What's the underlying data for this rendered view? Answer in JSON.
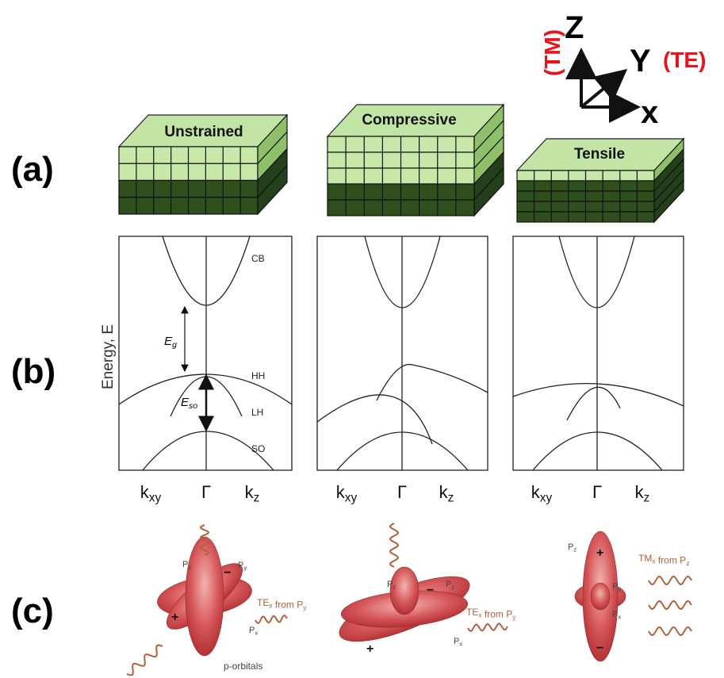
{
  "panel_labels": [
    "(a)",
    "(b)",
    "(c)"
  ],
  "axes": {
    "z": "Z",
    "y": "Y",
    "x": "x",
    "tm": "(TM)",
    "te": "(TE)"
  },
  "strain_blocks": [
    "Unstrained",
    "Compressive",
    "Tensile"
  ],
  "band_diagrams": {
    "y_axis_label": "Energy, E",
    "band_labels": [
      "CB",
      "HH",
      "LH",
      "SO"
    ],
    "gap_labels": [
      [
        "E",
        {
          "sub": "g"
        }
      ],
      [
        "E",
        {
          "sub": "so"
        }
      ]
    ],
    "panels": [
      {
        "k_labels": [
          [
            "k",
            {
              "sub": "xy"
            }
          ],
          "Γ",
          [
            "k",
            {
              "sub": "z"
            }
          ]
        ]
      },
      {
        "k_labels": [
          [
            "k",
            {
              "sub": "xy"
            }
          ],
          "Γ",
          [
            "k",
            {
              "sub": "z"
            }
          ]
        ]
      },
      {
        "k_labels": [
          [
            "k",
            {
              "sub": "xy"
            }
          ],
          "Γ",
          [
            "k",
            {
              "sub": "z"
            }
          ]
        ]
      }
    ]
  },
  "orbitals": [
    {
      "labels": [
        [
          "P",
          {
            "sub": "z"
          }
        ],
        [
          "P",
          {
            "sub": "y"
          }
        ],
        [
          "P",
          {
            "sub": "x"
          }
        ]
      ],
      "emission": [
        "TE",
        {
          "sub": "x"
        },
        " from P",
        {
          "sub": "y"
        }
      ],
      "caption": "p-orbitals",
      "signs": [
        "−",
        "+"
      ]
    },
    {
      "labels": [
        [
          "P",
          {
            "sub": "z"
          }
        ],
        [
          "P",
          {
            "sub": "y"
          }
        ],
        [
          "P",
          {
            "sub": "x"
          }
        ]
      ],
      "emission": [
        "TE",
        {
          "sub": "x"
        },
        " from P",
        {
          "sub": "y"
        }
      ],
      "signs": [
        "−",
        "+"
      ]
    },
    {
      "labels": [
        [
          "P",
          {
            "sub": "z"
          }
        ],
        [
          "P",
          {
            "sub": "y"
          }
        ],
        [
          "P",
          {
            "sub": "x"
          }
        ]
      ],
      "emission": [
        "TM",
        {
          "sub": "x"
        },
        " from P",
        {
          "sub": "z"
        }
      ],
      "signs": [
        "+",
        "−"
      ]
    }
  ]
}
